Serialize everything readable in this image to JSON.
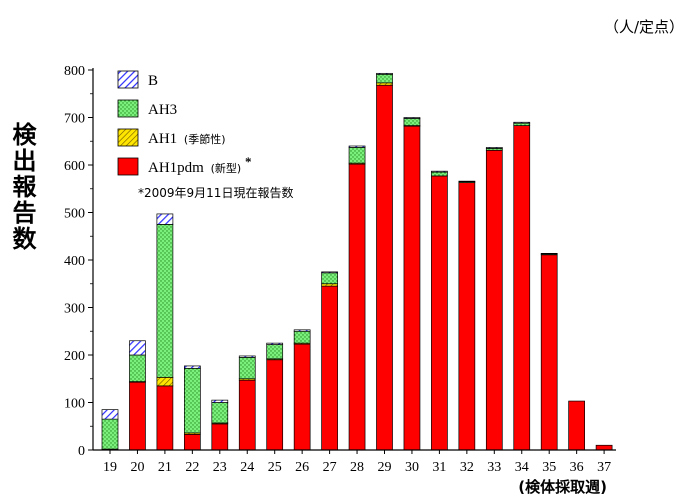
{
  "chart_data": {
    "type": "bar",
    "stacked": true,
    "units": "（人/定点）",
    "ylabel": "検出報告数",
    "xlabel": "(検体採取週)",
    "note": "*2009年9月11日現在報告数",
    "ylim": [
      0,
      800
    ],
    "yticks": [
      0,
      100,
      200,
      300,
      400,
      500,
      600,
      700,
      800
    ],
    "categories": [
      "19",
      "20",
      "21",
      "22",
      "23",
      "24",
      "25",
      "26",
      "27",
      "28",
      "29",
      "30",
      "31",
      "32",
      "33",
      "34",
      "35",
      "36",
      "37"
    ],
    "series": [
      {
        "name": "AH1pdm",
        "legend_note": "(新型)",
        "legend_mark": "*",
        "color": "#ff0000",
        "pattern": "solid",
        "values": [
          2,
          143,
          135,
          33,
          55,
          147,
          190,
          223,
          345,
          602,
          768,
          682,
          577,
          563,
          631,
          683,
          411,
          103,
          10
        ]
      },
      {
        "name": "AH1",
        "legend_note": "(季節性)",
        "color": "#ffe600",
        "pattern": "hatch",
        "values": [
          0,
          1,
          18,
          3,
          2,
          3,
          2,
          2,
          5,
          2,
          5,
          1,
          0,
          0,
          0,
          0,
          0,
          0,
          0
        ]
      },
      {
        "name": "AH3",
        "color": "#7cf07c",
        "pattern": "dots",
        "values": [
          63,
          56,
          322,
          136,
          43,
          45,
          30,
          25,
          23,
          33,
          18,
          15,
          8,
          2,
          4,
          5,
          2,
          0,
          0
        ]
      },
      {
        "name": "B",
        "color": "#2b2bff",
        "pattern": "hatch",
        "values": [
          20,
          30,
          22,
          5,
          5,
          3,
          3,
          3,
          2,
          3,
          2,
          2,
          2,
          1,
          2,
          2,
          1,
          0,
          0
        ]
      }
    ],
    "legend_position": "top-left"
  }
}
